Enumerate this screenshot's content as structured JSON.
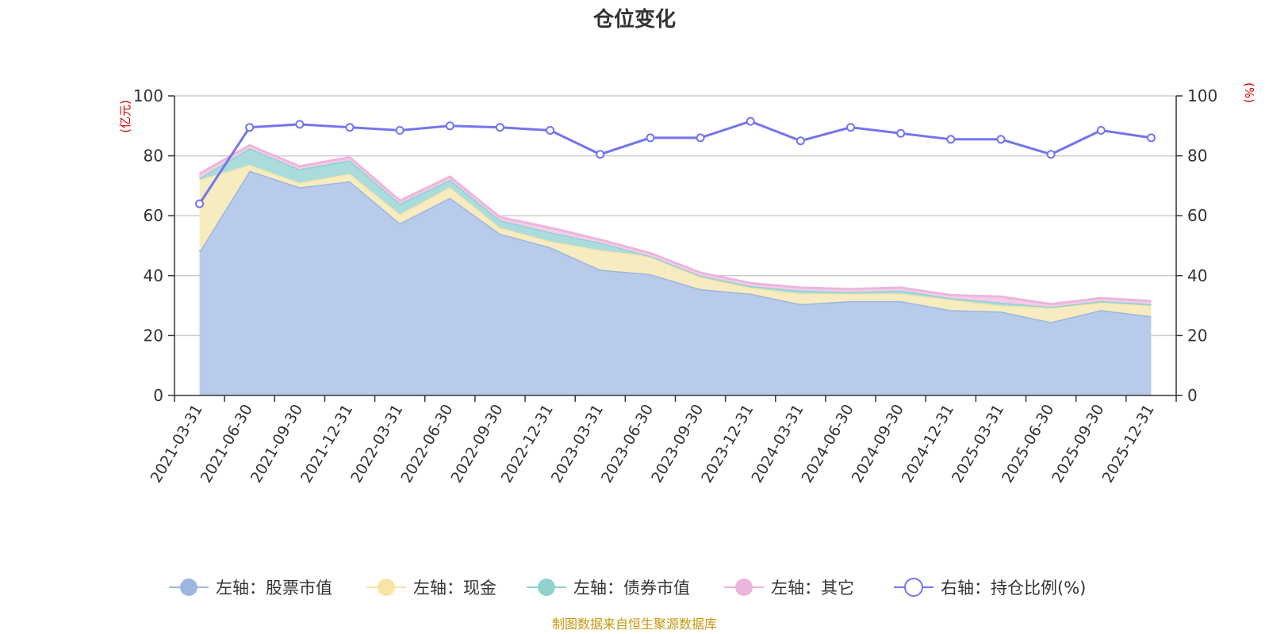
{
  "chart_data": {
    "type": "area",
    "title": "仓位变化",
    "categories": [
      "2021-03-31",
      "2021-06-30",
      "2021-09-30",
      "2021-12-31",
      "2022-03-31",
      "2022-06-30",
      "2022-09-30",
      "2022-12-31",
      "2023-03-31",
      "2023-06-30",
      "2023-09-30",
      "2023-12-31",
      "2024-03-31",
      "2024-06-30",
      "2024-09-30",
      "2024-12-31",
      "2025-03-31",
      "2025-06-30",
      "2025-09-30",
      "2025-12-31"
    ],
    "left_axis": {
      "unit": "(亿元)",
      "ylim": [
        0,
        100
      ],
      "ticks": [
        "0",
        "20",
        "40",
        "60",
        "80",
        "100"
      ]
    },
    "right_axis": {
      "unit": "(%)",
      "ylim": [
        0,
        100
      ],
      "ticks": [
        "0",
        "20",
        "40",
        "60",
        "80",
        "100"
      ]
    },
    "series": [
      {
        "name": "左轴：股票市值",
        "axis": "left",
        "kind": "stacked-area",
        "color": "#9db6e0",
        "fill": "#b8cbea",
        "values": [
          48,
          75,
          69.5,
          71.5,
          57.5,
          66,
          54,
          49.5,
          42,
          40.5,
          35.5,
          34,
          30.5,
          31.5,
          31.5,
          28.5,
          28,
          24.5,
          28.5,
          26.5
        ]
      },
      {
        "name": "左轴：现金",
        "axis": "left",
        "kind": "stacked-area",
        "color": "#f7e4a6",
        "fill": "#f7ecbf",
        "values": [
          24,
          2,
          1.5,
          2.5,
          3,
          3.5,
          2,
          2,
          6.5,
          6,
          4,
          2,
          3.5,
          2.5,
          2.5,
          3.5,
          2,
          5,
          2.5,
          3.5
        ]
      },
      {
        "name": "左轴：债券市值",
        "axis": "left",
        "kind": "stacked-area",
        "color": "#8fd2cf",
        "fill": "#abdcdc",
        "values": [
          0.5,
          5.5,
          4.5,
          4.5,
          3.5,
          2.5,
          2.5,
          3,
          2.5,
          0,
          0.5,
          0.5,
          1,
          0.5,
          1,
          0.5,
          1,
          0,
          0.5,
          0.5
        ]
      },
      {
        "name": "左轴：其它",
        "axis": "left",
        "kind": "stacked-area",
        "color": "#ecb6dc",
        "fill": "#f3cde8",
        "values": [
          1.5,
          1,
          1,
          1,
          1,
          1,
          1,
          1.5,
          1,
          1,
          1,
          1,
          1,
          1,
          1,
          1,
          2,
          1,
          1,
          1
        ]
      },
      {
        "name": "右轴：持仓比例(%)",
        "axis": "right",
        "kind": "line",
        "color": "#7474ee",
        "values": [
          64,
          89.5,
          90.5,
          89.5,
          88.5,
          90,
          89.5,
          88.5,
          80.5,
          86,
          86,
          91.5,
          85,
          89.5,
          87.5,
          85.5,
          85.5,
          80.5,
          88.5,
          86
        ]
      }
    ],
    "legend_position": "bottom",
    "grid": true,
    "source_note": "制图数据来自恒生聚源数据库"
  }
}
